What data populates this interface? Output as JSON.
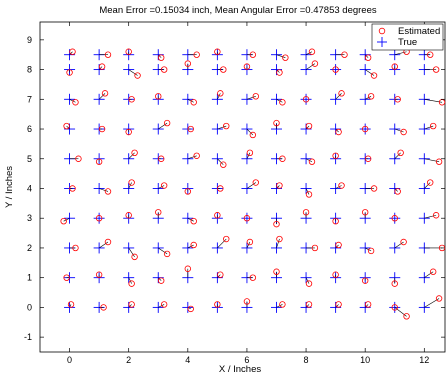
{
  "chart_data": {
    "type": "scatter",
    "title": "Mean Error =0.15034 inch, Mean Angular Error =0.47853 degrees",
    "xlabel": "X / Inches",
    "ylabel": "Y / Inches",
    "xlim": [
      -1,
      12.7
    ],
    "ylim": [
      -1.5,
      9.6
    ],
    "xticks": [
      "0",
      "2",
      "4",
      "6",
      "8",
      "10",
      "12"
    ],
    "yticks": [
      "-1",
      "0",
      "1",
      "2",
      "3",
      "4",
      "5",
      "6",
      "7",
      "8",
      "9"
    ],
    "grid": false,
    "legend": {
      "position": "top-right",
      "entries": [
        "Estimated",
        "True"
      ]
    },
    "series": [
      {
        "name": "Estimated",
        "marker": "circle",
        "color": "#ff0000",
        "x": [
          0.05,
          1.15,
          2.1,
          3.2,
          4.1,
          5.0,
          6.0,
          7.2,
          8.1,
          9.1,
          10.1,
          11.0,
          11.4,
          12.5,
          -0.1,
          1.0,
          2.1,
          3.1,
          4.0,
          5.1,
          6.2,
          7.0,
          8.1,
          9.0,
          10.0,
          11.0,
          12.3,
          0.2,
          1.3,
          2.2,
          3.3,
          4.2,
          5.3,
          6.1,
          7.1,
          8.3,
          9.1,
          10.2,
          11.3,
          12.6,
          -0.2,
          1.0,
          2.0,
          3.0,
          4.2,
          5.0,
          6.0,
          7.0,
          8.0,
          9.0,
          10.0,
          11.0,
          12.4,
          0.1,
          1.3,
          2.1,
          3.2,
          4.0,
          5.1,
          6.3,
          7.1,
          8.1,
          9.2,
          10.3,
          11.1,
          12.2,
          0.3,
          1.0,
          2.2,
          3.1,
          4.3,
          5.2,
          6.1,
          7.2,
          8.2,
          9.0,
          10.1,
          11.2,
          12.5,
          -0.1,
          1.1,
          2.0,
          3.3,
          4.1,
          5.3,
          6.2,
          7.0,
          8.1,
          9.1,
          10.0,
          11.3,
          12.3,
          0.2,
          1.2,
          2.1,
          3.0,
          4.2,
          5.1,
          6.3,
          7.2,
          8.0,
          9.2,
          10.2,
          11.1,
          12.6,
          0.0,
          1.1,
          2.3,
          3.2,
          4.0,
          5.2,
          6.0,
          7.1,
          8.3,
          9.0,
          10.3,
          11.0,
          12.4,
          0.1,
          1.3,
          2.0,
          3.1,
          4.3,
          5.0,
          6.2,
          7.3,
          8.2,
          9.3,
          10.1,
          11.4,
          12.2
        ],
        "y": [
          0.1,
          0.0,
          0.1,
          0.1,
          -0.05,
          0.1,
          0.2,
          0.1,
          0.1,
          0.1,
          0.1,
          0.0,
          -0.3,
          0.3,
          1.0,
          1.1,
          0.8,
          0.9,
          1.3,
          1.1,
          1.0,
          1.2,
          0.8,
          1.1,
          0.9,
          0.8,
          1.2,
          2.0,
          2.2,
          1.7,
          1.8,
          2.1,
          2.3,
          2.2,
          2.3,
          2.0,
          2.1,
          1.9,
          2.2,
          2.0,
          2.9,
          3.0,
          3.1,
          3.2,
          2.9,
          3.1,
          3.0,
          2.8,
          3.2,
          2.9,
          3.2,
          3.0,
          3.1,
          4.0,
          3.9,
          4.2,
          4.1,
          3.9,
          4.0,
          4.2,
          4.1,
          3.8,
          4.1,
          4.0,
          3.9,
          4.2,
          5.0,
          4.9,
          5.2,
          5.0,
          5.1,
          4.8,
          5.2,
          5.0,
          4.9,
          5.1,
          5.0,
          5.2,
          4.9,
          6.1,
          6.0,
          5.9,
          6.2,
          6.0,
          6.1,
          5.8,
          6.2,
          6.1,
          5.9,
          6.0,
          5.9,
          6.1,
          6.9,
          7.2,
          7.0,
          7.1,
          6.9,
          7.2,
          7.1,
          6.9,
          7.0,
          7.2,
          7.1,
          7.0,
          6.9,
          7.9,
          8.1,
          7.8,
          8.0,
          8.2,
          8.0,
          8.1,
          7.9,
          8.2,
          8.0,
          7.8,
          8.1,
          8.0,
          8.6,
          8.5,
          8.6,
          8.4,
          8.5,
          8.6,
          8.5,
          8.4,
          8.6,
          8.5,
          8.4,
          8.6,
          8.5
        ]
      },
      {
        "name": "True",
        "marker": "plus",
        "color": "#0000ff",
        "x": [
          0,
          1,
          2,
          3,
          4,
          5,
          6,
          7,
          8,
          9,
          10,
          11,
          12,
          0,
          1,
          2,
          3,
          4,
          5,
          6,
          7,
          8,
          9,
          10,
          11,
          12,
          0,
          1,
          2,
          3,
          4,
          5,
          6,
          7,
          8,
          9,
          10,
          11,
          12,
          0,
          1,
          2,
          3,
          4,
          5,
          6,
          7,
          8,
          9,
          10,
          11,
          12,
          0,
          1,
          2,
          3,
          4,
          5,
          6,
          7,
          8,
          9,
          10,
          11,
          12,
          0,
          1,
          2,
          3,
          4,
          5,
          6,
          7,
          8,
          9,
          10,
          11,
          12,
          0,
          1,
          2,
          3,
          4,
          5,
          6,
          7,
          8,
          9,
          10,
          11,
          12,
          0,
          1,
          2,
          3,
          4,
          5,
          6,
          7,
          8,
          9,
          10,
          11,
          12,
          0,
          1,
          2,
          3,
          4,
          5,
          6,
          7,
          8,
          9,
          10,
          11,
          12,
          0,
          1,
          2,
          3,
          4,
          5,
          6,
          7,
          8,
          9,
          10,
          11,
          12
        ],
        "y": [
          0,
          0,
          0,
          0,
          0,
          0,
          0,
          0,
          0,
          0,
          0,
          0,
          0,
          1,
          1,
          1,
          1,
          1,
          1,
          1,
          1,
          1,
          1,
          1,
          1,
          1,
          2,
          2,
          2,
          2,
          2,
          2,
          2,
          2,
          2,
          2,
          2,
          2,
          2,
          3,
          3,
          3,
          3,
          3,
          3,
          3,
          3,
          3,
          3,
          3,
          3,
          3,
          4,
          4,
          4,
          4,
          4,
          4,
          4,
          4,
          4,
          4,
          4,
          4,
          4,
          5,
          5,
          5,
          5,
          5,
          5,
          5,
          5,
          5,
          5,
          5,
          5,
          5,
          6,
          6,
          6,
          6,
          6,
          6,
          6,
          6,
          6,
          6,
          6,
          6,
          6,
          7,
          7,
          7,
          7,
          7,
          7,
          7,
          7,
          7,
          7,
          7,
          7,
          7,
          8,
          8,
          8,
          8,
          8,
          8,
          8,
          8,
          8,
          8,
          8,
          8,
          8,
          8.5,
          8.5,
          8.5,
          8.5,
          8.5,
          8.5,
          8.5,
          8.5,
          8.5,
          8.5,
          8.5,
          8.5,
          8.5
        ]
      }
    ]
  }
}
